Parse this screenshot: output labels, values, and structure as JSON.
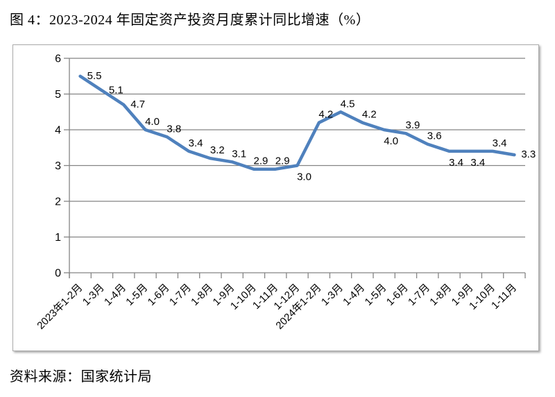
{
  "title": "图 4：2023-2024 年固定资产投资月度累计同比增速（%）",
  "source": "资料来源：国家统计局",
  "chart_data": {
    "type": "line",
    "title": "图 4：2023-2024 年固定资产投资月度累计同比增速（%）",
    "categories": [
      "2023年1-2月",
      "1-3月",
      "1-4月",
      "1-5月",
      "1-6月",
      "1-7月",
      "1-8月",
      "1-9月",
      "1-10月",
      "1-11月",
      "1-12月",
      "2024年1-2月",
      "1-3月",
      "1-4月",
      "1-5月",
      "1-6月",
      "1-7月",
      "1-8月",
      "1-9月",
      "1-10月",
      "1-11月"
    ],
    "values": [
      5.5,
      5.1,
      4.7,
      4.0,
      3.8,
      3.4,
      3.2,
      3.1,
      2.9,
      2.9,
      3.0,
      4.2,
      4.5,
      4.2,
      4.0,
      3.9,
      3.6,
      3.4,
      3.4,
      3.4,
      3.3
    ],
    "data_labels": [
      "5.5",
      "5.1",
      "4.7",
      "4.0",
      "3.8",
      "3.4",
      "3.2",
      "3.1",
      "2.9",
      "2.9",
      "3.0",
      "4.2",
      "4.5",
      "4.2",
      "4.0",
      "3.9",
      "3.6",
      "3.4",
      "3.4",
      "3.4",
      "3.3"
    ],
    "label_positions": [
      "right",
      "right",
      "right",
      "above",
      "above",
      "above",
      "above",
      "above",
      "above",
      "above",
      "below",
      "above",
      "above",
      "above",
      "below",
      "above",
      "above",
      "below",
      "below",
      "above",
      "right"
    ],
    "xlabel": "",
    "ylabel": "",
    "ylim": [
      0,
      6
    ],
    "yticks": [
      0,
      1,
      2,
      3,
      4,
      5,
      6
    ],
    "grid": true,
    "legend": "none",
    "line_color": "#4F81BD",
    "grid_color": "#848484",
    "axis_color": "#848484",
    "label_color": "#000000"
  }
}
